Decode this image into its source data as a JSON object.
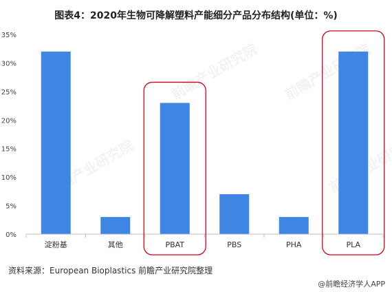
{
  "title": "图表4：2020年生物可降解塑料产能细分产品分布结构(单位：%)",
  "source": "资料来源：European Bioplastics 前瞻产业研究院整理",
  "credit": "@前瞻经济学人APP",
  "watermark": "前瞻产业研究院",
  "colors": {
    "bar": "#3f85e4",
    "highlight": "#d0021b",
    "axis": "#bfbfbf",
    "grid": "#e6e6e6"
  },
  "chart_data": {
    "type": "bar",
    "categories": [
      "淀粉基",
      "其他",
      "PBAT",
      "PBS",
      "PHA",
      "PLA"
    ],
    "values": [
      32,
      3,
      23,
      7,
      3,
      32
    ],
    "ylim": [
      0,
      35
    ],
    "yticks": [
      "0%",
      "5%",
      "10%",
      "15%",
      "20%",
      "25%",
      "30%",
      "35%"
    ],
    "yticks_values": [
      0,
      5,
      10,
      15,
      20,
      25,
      30,
      35
    ],
    "highlighted": [
      "PBAT",
      "PLA"
    ],
    "grid": false,
    "legend": "none"
  }
}
